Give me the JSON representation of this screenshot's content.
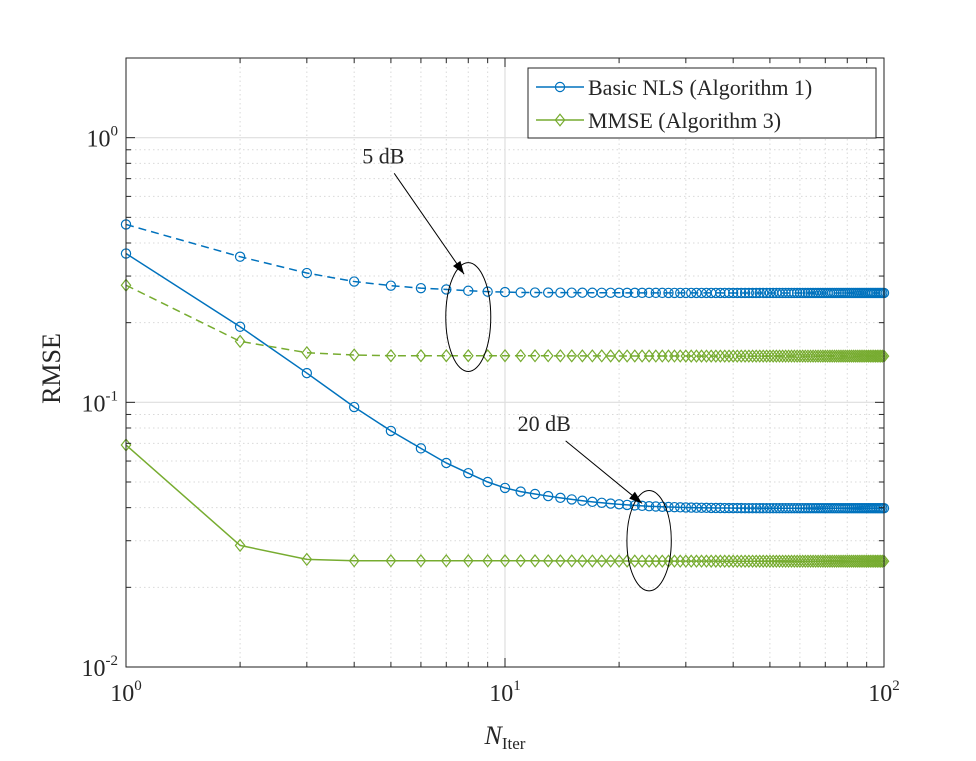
{
  "chart_data": {
    "type": "line",
    "title": "",
    "xscale": "log",
    "yscale": "log",
    "xlim": [
      1,
      100
    ],
    "ylim": [
      0.01,
      2
    ],
    "grid": true,
    "xlabel": {
      "main": "N",
      "sub": "Iter"
    },
    "ylabel": "RMSE",
    "x_ticks": [
      {
        "value": 1,
        "base": "10",
        "exp": "0"
      },
      {
        "value": 10,
        "base": "10",
        "exp": "1"
      },
      {
        "value": 100,
        "base": "10",
        "exp": "2"
      }
    ],
    "y_ticks": [
      {
        "value": 0.01,
        "base": "10",
        "exp": "-2"
      },
      {
        "value": 0.1,
        "base": "10",
        "exp": "-1"
      },
      {
        "value": 1,
        "base": "10",
        "exp": "0"
      }
    ],
    "legend": {
      "placement": "top-right",
      "entries": [
        {
          "label": "Basic NLS (Algorithm 1)",
          "color": "#0072BD",
          "marker": "circle"
        },
        {
          "label": "MMSE (Algorithm 3)",
          "color": "#77AC30",
          "marker": "diamond"
        }
      ]
    },
    "series": [
      {
        "name": "Basic NLS (Algorithm 1), 5 dB",
        "algorithm": "Basic NLS (Algorithm 1)",
        "snr": "5 dB",
        "color": "#0072BD",
        "marker": "circle",
        "dashed": true,
        "head": [
          [
            1,
            0.47
          ],
          [
            2,
            0.355
          ],
          [
            3,
            0.308
          ],
          [
            4,
            0.286
          ],
          [
            5,
            0.276
          ],
          [
            6,
            0.27
          ],
          [
            7,
            0.267
          ],
          [
            8,
            0.264
          ],
          [
            9,
            0.262
          ],
          [
            10,
            0.261
          ]
        ],
        "tail": {
          "from": 11,
          "to": 100,
          "start": 0.26,
          "end": 0.259,
          "decay": 8
        }
      },
      {
        "name": "Basic NLS (Algorithm 1), 20 dB",
        "algorithm": "Basic NLS (Algorithm 1)",
        "snr": "20 dB",
        "color": "#0072BD",
        "marker": "circle",
        "dashed": false,
        "head": [
          [
            1,
            0.365
          ],
          [
            2,
            0.193
          ],
          [
            3,
            0.129
          ],
          [
            4,
            0.096
          ],
          [
            5,
            0.078
          ],
          [
            6,
            0.067
          ],
          [
            7,
            0.059
          ],
          [
            8,
            0.054
          ],
          [
            9,
            0.05
          ],
          [
            10,
            0.0475
          ]
        ],
        "tail": {
          "from": 11,
          "to": 100,
          "start": 0.046,
          "end": 0.0398,
          "decay": 6
        }
      },
      {
        "name": "MMSE (Algorithm 3), 5 dB",
        "algorithm": "MMSE (Algorithm 3)",
        "snr": "5 dB",
        "color": "#77AC30",
        "marker": "diamond",
        "dashed": true,
        "head": [
          [
            1,
            0.277
          ],
          [
            2,
            0.17
          ],
          [
            3,
            0.154
          ],
          [
            4,
            0.151
          ],
          [
            5,
            0.15
          ],
          [
            6,
            0.15
          ],
          [
            7,
            0.15
          ],
          [
            8,
            0.15
          ],
          [
            9,
            0.15
          ],
          [
            10,
            0.15
          ]
        ],
        "tail": {
          "from": 11,
          "to": 100,
          "start": 0.15,
          "end": 0.1495,
          "decay": 10
        }
      },
      {
        "name": "MMSE (Algorithm 3), 20 dB",
        "algorithm": "MMSE (Algorithm 3)",
        "snr": "20 dB",
        "color": "#77AC30",
        "marker": "diamond",
        "dashed": false,
        "head": [
          [
            1,
            0.069
          ],
          [
            2,
            0.0288
          ],
          [
            3,
            0.0255
          ],
          [
            4,
            0.0252
          ],
          [
            5,
            0.0252
          ],
          [
            6,
            0.0252
          ],
          [
            7,
            0.0252
          ],
          [
            8,
            0.0252
          ],
          [
            9,
            0.0252
          ],
          [
            10,
            0.0252
          ]
        ],
        "tail": {
          "from": 11,
          "to": 100,
          "start": 0.0252,
          "end": 0.0251,
          "decay": 10
        }
      }
    ],
    "annotations": [
      {
        "id": "5db",
        "text": "5 dB",
        "text_at": [
          4.2,
          0.8
        ],
        "arrow_to": [
          7.8,
          0.305
        ],
        "ellipse_center": [
          8.0,
          0.21
        ],
        "ellipse_span_x": [
          7.0,
          9.2
        ],
        "ellipse_span_y": [
          0.13,
          0.335
        ]
      },
      {
        "id": "20db",
        "text": "20 dB",
        "text_at": [
          10.8,
          0.078
        ],
        "arrow_to": [
          23.0,
          0.0415
        ],
        "ellipse_center": [
          24.0,
          0.03
        ],
        "ellipse_span_x": [
          21.0,
          27.5
        ],
        "ellipse_span_y": [
          0.0188,
          0.045
        ]
      }
    ]
  }
}
